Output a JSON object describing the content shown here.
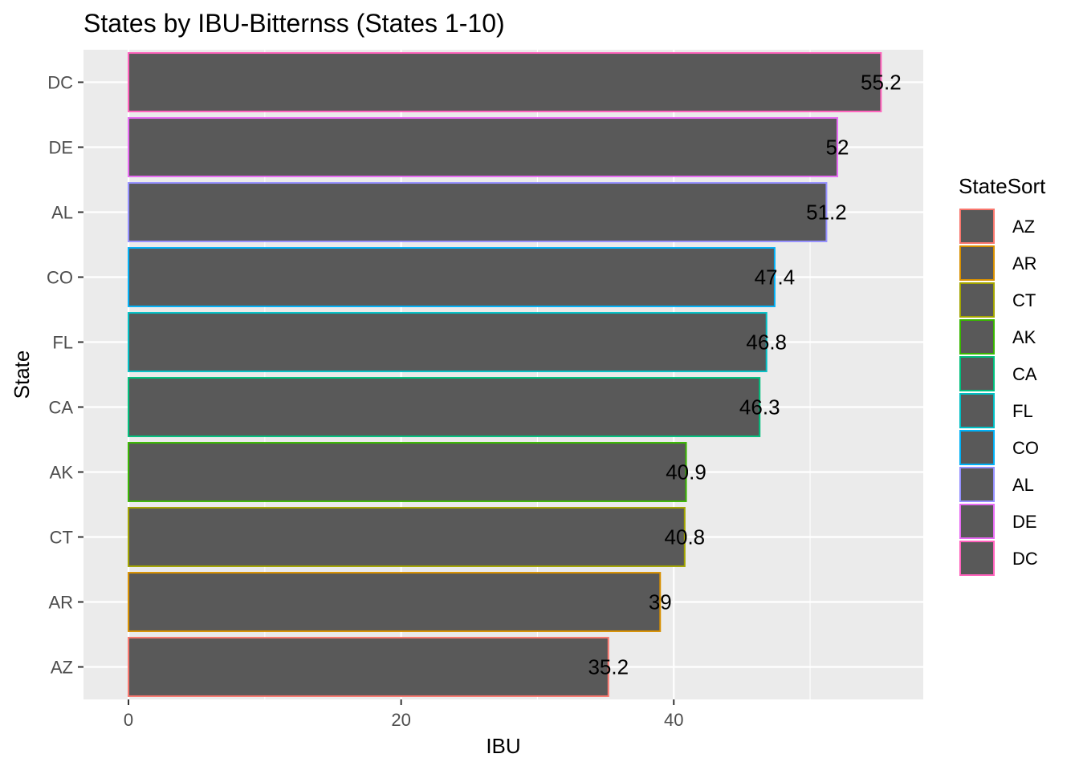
{
  "chart_data": {
    "type": "bar",
    "orientation": "horizontal",
    "title": "States by IBU-Bitternss (States 1-10)",
    "xlabel": "IBU",
    "ylabel": "State",
    "xlim": [
      -3.3,
      58.3
    ],
    "x_ticks": [
      0,
      20,
      40
    ],
    "categories": [
      "AZ",
      "AR",
      "CT",
      "AK",
      "CA",
      "FL",
      "CO",
      "AL",
      "DE",
      "DC"
    ],
    "values": [
      35.2,
      39,
      40.8,
      40.9,
      46.3,
      46.8,
      47.4,
      51.2,
      52,
      55.2
    ],
    "value_labels": [
      "35.2",
      "39",
      "40.8",
      "40.9",
      "46.3",
      "46.8",
      "47.4",
      "51.2",
      "52",
      "55.2"
    ],
    "bar_fill": "#595959",
    "border_colors": [
      "#F8766D",
      "#D89000",
      "#A3A500",
      "#39B600",
      "#00BF7D",
      "#00BFC4",
      "#00B0F6",
      "#9590FF",
      "#E76BF3",
      "#FF62BC"
    ],
    "panel_background": "#EBEBEB",
    "grid": true,
    "legend": {
      "title": "StateSort",
      "position": "right",
      "entries": [
        "AZ",
        "AR",
        "CT",
        "AK",
        "CA",
        "FL",
        "CO",
        "AL",
        "DE",
        "DC"
      ]
    }
  }
}
